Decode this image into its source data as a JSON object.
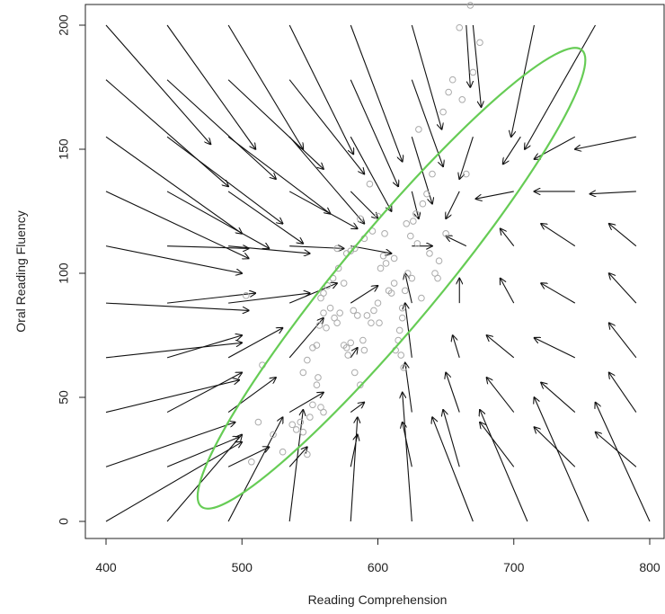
{
  "chart_data": {
    "type": "scatter",
    "title": "",
    "xlabel": "Reading Comprehension",
    "ylabel": "Oral Reading Fluency",
    "xlim": [
      400,
      800
    ],
    "ylim": [
      0,
      200
    ],
    "xticks": [
      "400",
      "500",
      "600",
      "700",
      "800"
    ],
    "yticks": [
      "0",
      "50",
      "100",
      "150",
      "200"
    ],
    "grid": false,
    "legend": "none",
    "colors": {
      "points": "#aaaaaa",
      "arrows": "#111111",
      "ellipse": "#66cc55",
      "axis": "#222222"
    },
    "points": [
      [
        507,
        24
      ],
      [
        512,
        40
      ],
      [
        515,
        63
      ],
      [
        523,
        35
      ],
      [
        530,
        28
      ],
      [
        537,
        39
      ],
      [
        540,
        37
      ],
      [
        543,
        40
      ],
      [
        545,
        36
      ],
      [
        548,
        27
      ],
      [
        550,
        42
      ],
      [
        552,
        47
      ],
      [
        555,
        55
      ],
      [
        556,
        58
      ],
      [
        558,
        46
      ],
      [
        560,
        44
      ],
      [
        545,
        60
      ],
      [
        548,
        65
      ],
      [
        552,
        70
      ],
      [
        555,
        71
      ],
      [
        557,
        79
      ],
      [
        560,
        84
      ],
      [
        562,
        78
      ],
      [
        565,
        86
      ],
      [
        568,
        82
      ],
      [
        570,
        80
      ],
      [
        572,
        84
      ],
      [
        575,
        71
      ],
      [
        577,
        70
      ],
      [
        580,
        72
      ],
      [
        582,
        85
      ],
      [
        585,
        83
      ],
      [
        587,
        55
      ],
      [
        590,
        69
      ],
      [
        592,
        83
      ],
      [
        595,
        80
      ],
      [
        597,
        85
      ],
      [
        600,
        88
      ],
      [
        602,
        102
      ],
      [
        604,
        107
      ],
      [
        606,
        104
      ],
      [
        608,
        93
      ],
      [
        610,
        92
      ],
      [
        612,
        96
      ],
      [
        615,
        73
      ],
      [
        616,
        77
      ],
      [
        618,
        82
      ],
      [
        620,
        93
      ],
      [
        622,
        100
      ],
      [
        624,
        115
      ],
      [
        626,
        121
      ],
      [
        628,
        124
      ],
      [
        630,
        158
      ],
      [
        633,
        128
      ],
      [
        636,
        132
      ],
      [
        640,
        140
      ],
      [
        642,
        100
      ],
      [
        645,
        105
      ],
      [
        648,
        165
      ],
      [
        652,
        173
      ],
      [
        655,
        178
      ],
      [
        660,
        199
      ],
      [
        662,
        170
      ],
      [
        665,
        140
      ],
      [
        668,
        208
      ],
      [
        670,
        181
      ],
      [
        675,
        193
      ],
      [
        600,
        123
      ],
      [
        596,
        117
      ],
      [
        594,
        136
      ],
      [
        590,
        114
      ],
      [
        587,
        122
      ],
      [
        583,
        110
      ],
      [
        580,
        109
      ],
      [
        577,
        108
      ],
      [
        571,
        102
      ],
      [
        567,
        98
      ],
      [
        563,
        95
      ],
      [
        560,
        92
      ],
      [
        558,
        90
      ],
      [
        575,
        96
      ],
      [
        570,
        110
      ],
      [
        605,
        116
      ],
      [
        612,
        106
      ],
      [
        618,
        86
      ],
      [
        621,
        120
      ],
      [
        625,
        98
      ],
      [
        629,
        112
      ],
      [
        632,
        90
      ],
      [
        638,
        108
      ],
      [
        644,
        98
      ],
      [
        650,
        116
      ],
      [
        617,
        67
      ],
      [
        613,
        69
      ],
      [
        619,
        62
      ],
      [
        578,
        67
      ],
      [
        583,
        60
      ],
      [
        589,
        73
      ],
      [
        503,
        91
      ],
      [
        601,
        80
      ]
    ],
    "arrows": [
      [
        400,
        200,
        477,
        152
      ],
      [
        445,
        200,
        510,
        150
      ],
      [
        490,
        200,
        545,
        150
      ],
      [
        535,
        200,
        582,
        148
      ],
      [
        580,
        200,
        618,
        145
      ],
      [
        625,
        200,
        647,
        158
      ],
      [
        670,
        200,
        676,
        167
      ],
      [
        715,
        200,
        698,
        155
      ],
      [
        760,
        200,
        708,
        150
      ],
      [
        400,
        178,
        490,
        135
      ],
      [
        445,
        178,
        525,
        138
      ],
      [
        490,
        178,
        560,
        142
      ],
      [
        535,
        178,
        590,
        140
      ],
      [
        580,
        178,
        615,
        135
      ],
      [
        625,
        178,
        648,
        143
      ],
      [
        665,
        200,
        668,
        175
      ],
      [
        400,
        155,
        500,
        116
      ],
      [
        445,
        155,
        530,
        120
      ],
      [
        490,
        155,
        565,
        124
      ],
      [
        535,
        155,
        590,
        120
      ],
      [
        580,
        155,
        610,
        125
      ],
      [
        625,
        155,
        640,
        128
      ],
      [
        670,
        155,
        660,
        138
      ],
      [
        705,
        155,
        692,
        144
      ],
      [
        745,
        155,
        715,
        146
      ],
      [
        790,
        155,
        745,
        150
      ],
      [
        400,
        133,
        505,
        106
      ],
      [
        445,
        133,
        520,
        110
      ],
      [
        490,
        133,
        545,
        112
      ],
      [
        535,
        133,
        585,
        118
      ],
      [
        580,
        133,
        600,
        122
      ],
      [
        625,
        133,
        630,
        122
      ],
      [
        660,
        133,
        650,
        122
      ],
      [
        700,
        133,
        672,
        130
      ],
      [
        745,
        133,
        715,
        133
      ],
      [
        790,
        133,
        756,
        132
      ],
      [
        400,
        111,
        500,
        100
      ],
      [
        445,
        111,
        505,
        110
      ],
      [
        490,
        111,
        550,
        108
      ],
      [
        535,
        111,
        575,
        110
      ],
      [
        580,
        111,
        610,
        108
      ],
      [
        625,
        111,
        640,
        111
      ],
      [
        665,
        111,
        650,
        115
      ],
      [
        700,
        111,
        690,
        118
      ],
      [
        745,
        111,
        720,
        120
      ],
      [
        790,
        111,
        770,
        120
      ],
      [
        400,
        88,
        505,
        85
      ],
      [
        445,
        88,
        510,
        92
      ],
      [
        490,
        88,
        550,
        92
      ],
      [
        535,
        88,
        570,
        96
      ],
      [
        580,
        88,
        600,
        95
      ],
      [
        625,
        88,
        620,
        100
      ],
      [
        660,
        88,
        660,
        98
      ],
      [
        700,
        88,
        690,
        98
      ],
      [
        745,
        88,
        720,
        96
      ],
      [
        790,
        88,
        770,
        100
      ],
      [
        400,
        66,
        500,
        72
      ],
      [
        445,
        66,
        500,
        75
      ],
      [
        490,
        66,
        530,
        78
      ],
      [
        535,
        66,
        560,
        82
      ],
      [
        580,
        66,
        585,
        70
      ],
      [
        625,
        66,
        620,
        88
      ],
      [
        660,
        66,
        655,
        75
      ],
      [
        700,
        66,
        680,
        75
      ],
      [
        745,
        66,
        715,
        74
      ],
      [
        790,
        66,
        770,
        80
      ],
      [
        400,
        44,
        498,
        57
      ],
      [
        445,
        44,
        500,
        60
      ],
      [
        490,
        44,
        525,
        58
      ],
      [
        535,
        44,
        560,
        52
      ],
      [
        580,
        44,
        590,
        48
      ],
      [
        625,
        44,
        620,
        64
      ],
      [
        660,
        44,
        650,
        60
      ],
      [
        700,
        44,
        680,
        58
      ],
      [
        745,
        44,
        720,
        56
      ],
      [
        790,
        44,
        770,
        60
      ],
      [
        400,
        22,
        495,
        40
      ],
      [
        445,
        22,
        498,
        34
      ],
      [
        490,
        22,
        520,
        30
      ],
      [
        535,
        22,
        548,
        30
      ],
      [
        580,
        22,
        585,
        35
      ],
      [
        625,
        22,
        618,
        40
      ],
      [
        660,
        22,
        648,
        45
      ],
      [
        700,
        22,
        675,
        40
      ],
      [
        745,
        22,
        715,
        38
      ],
      [
        790,
        22,
        760,
        36
      ],
      [
        400,
        0,
        500,
        32
      ],
      [
        445,
        0,
        500,
        35
      ],
      [
        490,
        0,
        530,
        42
      ],
      [
        535,
        0,
        545,
        45
      ],
      [
        580,
        0,
        585,
        42
      ],
      [
        625,
        0,
        618,
        52
      ],
      [
        670,
        0,
        640,
        42
      ],
      [
        710,
        0,
        675,
        45
      ],
      [
        755,
        0,
        715,
        50
      ],
      [
        800,
        0,
        760,
        48
      ]
    ],
    "ellipse": {
      "center": [
        610,
        98
      ],
      "semi_major_data_x": 140,
      "semi_major_data_y": 92,
      "semi_minor_data_x": -20,
      "semi_minor_data_y": 16
    }
  }
}
